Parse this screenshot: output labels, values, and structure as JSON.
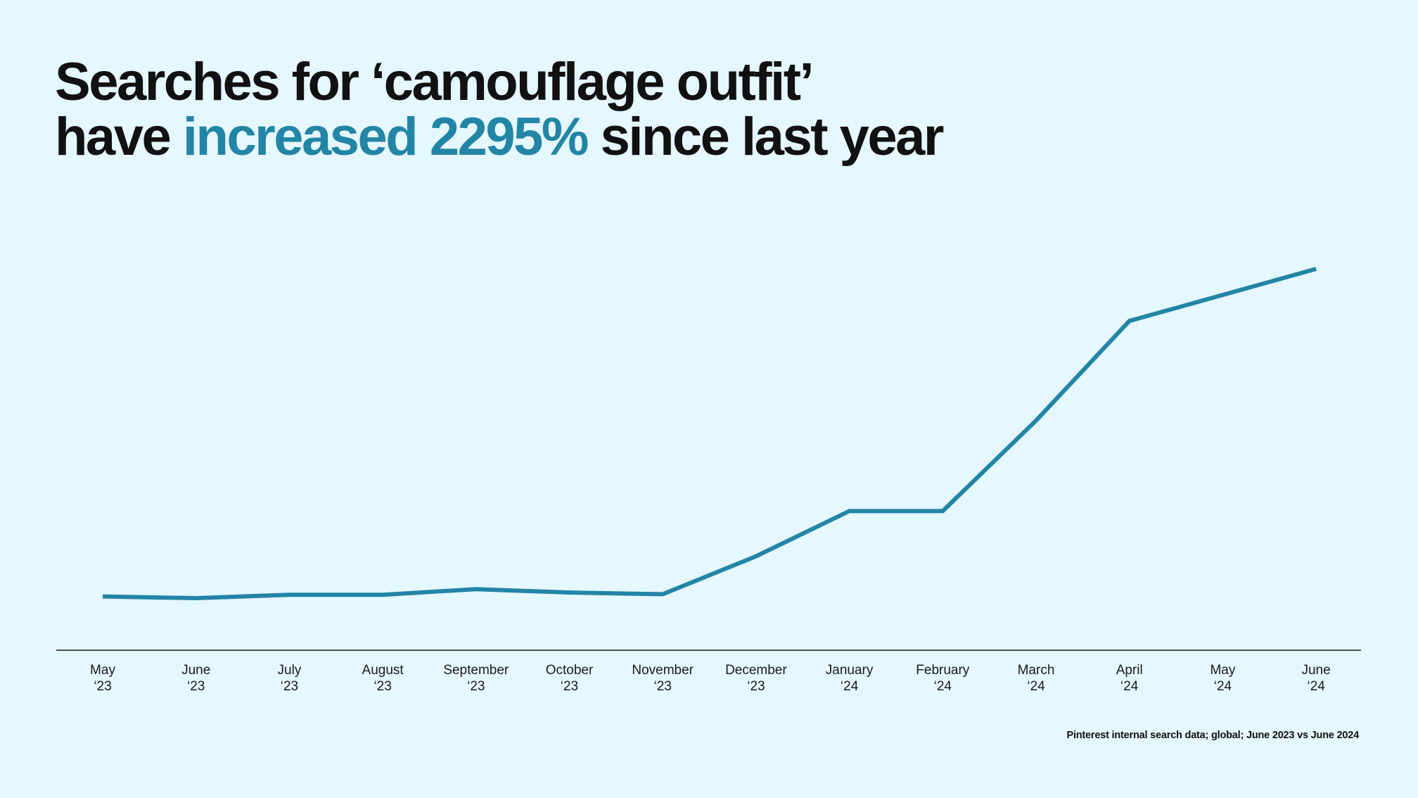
{
  "colors": {
    "background": "#e5f7ff",
    "accent": "#2385a6",
    "text": "#111111",
    "axis": "#1a1a1a"
  },
  "headline": {
    "line1": "Searches for ‘camouflage outfit’",
    "line2_prefix": "have ",
    "line2_accent": "increased 2295%",
    "line2_suffix": " since last year"
  },
  "footnote": "Pinterest internal search data; global; June 2023 vs June 2024",
  "chart_data": {
    "type": "line",
    "title": "Searches for ‘camouflage outfit’ have increased 2295% since last year",
    "xlabel": "",
    "ylabel": "",
    "grid": false,
    "legend": "none",
    "categories": [
      [
        "May",
        "‘23"
      ],
      [
        "June",
        "‘23"
      ],
      [
        "July",
        "‘23"
      ],
      [
        "August",
        "‘23"
      ],
      [
        "September",
        "‘23"
      ],
      [
        "October",
        "‘23"
      ],
      [
        "November",
        "‘23"
      ],
      [
        "December",
        "‘23"
      ],
      [
        "January",
        "‘24"
      ],
      [
        "February",
        "‘24"
      ],
      [
        "March",
        "‘24"
      ],
      [
        "April",
        "‘24"
      ],
      [
        "May",
        "‘24"
      ],
      [
        "June",
        "‘24"
      ]
    ],
    "series": [
      {
        "name": "camouflage outfit",
        "values": [
          9.5,
          9.2,
          9.8,
          9.8,
          10.8,
          10.2,
          9.9,
          16.6,
          24.6,
          24.6,
          40.6,
          58.2,
          62.8,
          67.4
        ]
      }
    ],
    "ylim": [
      0,
      100
    ]
  }
}
